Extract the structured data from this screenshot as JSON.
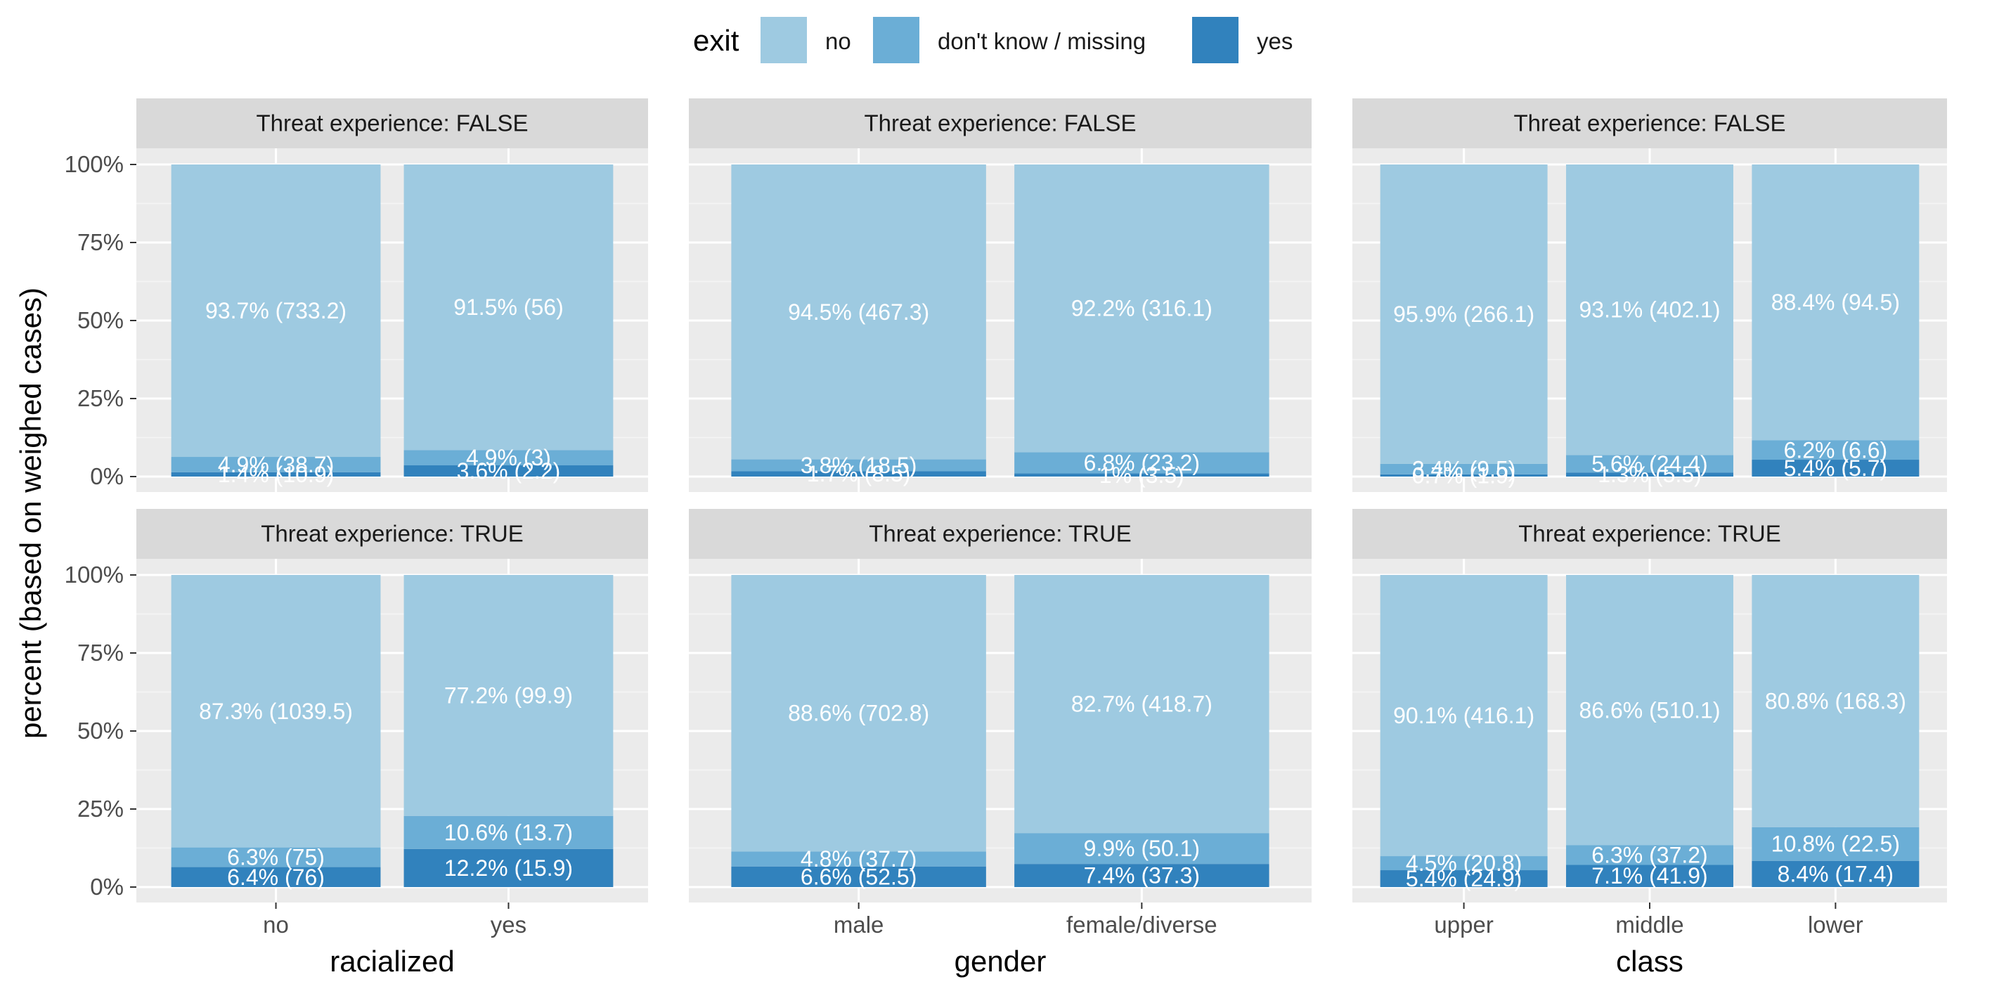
{
  "chart_data": {
    "type": "bar",
    "stacked": true,
    "ylabel": "percent (based on weighed cases)",
    "ylim": [
      0,
      1
    ],
    "y_ticks": [
      "0%",
      "25%",
      "50%",
      "75%",
      "100%"
    ],
    "grid": true,
    "legend": {
      "title": "exit",
      "position": "top",
      "items": [
        {
          "label": "no",
          "color": "#9ECAE1"
        },
        {
          "label": "don't know / missing",
          "color": "#6BAED6"
        },
        {
          "label": "yes",
          "color": "#3182BD"
        }
      ]
    },
    "strips": [
      "Threat experience: FALSE",
      "Threat experience: TRUE"
    ],
    "panels": [
      {
        "xlabel": "racialized",
        "categories": [
          "no",
          "yes"
        ],
        "rows": [
          {
            "strip": "Threat experience: FALSE",
            "bars": [
              {
                "category": "no",
                "yes": 0.014,
                "dk": 0.049,
                "no": 0.937,
                "labels": {
                  "yes": "1.4% (10.9)",
                  "dk": "4.9% (38.7)",
                  "no": "93.7% (733.2)"
                }
              },
              {
                "category": "yes",
                "yes": 0.036,
                "dk": 0.049,
                "no": 0.915,
                "labels": {
                  "yes": "3.6% (2.2)",
                  "dk": "4.9% (3)",
                  "no": "91.5% (56)"
                }
              }
            ]
          },
          {
            "strip": "Threat experience: TRUE",
            "bars": [
              {
                "category": "no",
                "yes": 0.064,
                "dk": 0.063,
                "no": 0.873,
                "labels": {
                  "yes": "6.4% (76)",
                  "dk": "6.3% (75)",
                  "no": "87.3% (1039.5)"
                }
              },
              {
                "category": "yes",
                "yes": 0.122,
                "dk": 0.106,
                "no": 0.772,
                "labels": {
                  "yes": "12.2% (15.9)",
                  "dk": "10.6% (13.7)",
                  "no": "77.2% (99.9)"
                }
              }
            ]
          }
        ]
      },
      {
        "xlabel": "gender",
        "categories": [
          "male",
          "female/diverse"
        ],
        "rows": [
          {
            "strip": "Threat experience: FALSE",
            "bars": [
              {
                "category": "male",
                "yes": 0.017,
                "dk": 0.038,
                "no": 0.945,
                "labels": {
                  "yes": "1.7% (8.5)",
                  "dk": "3.8% (18.5)",
                  "no": "94.5% (467.3)"
                }
              },
              {
                "category": "female/diverse",
                "yes": 0.01,
                "dk": 0.068,
                "no": 0.922,
                "labels": {
                  "yes": "1% (3.5)",
                  "dk": "6.8% (23.2)",
                  "no": "92.2% (316.1)"
                }
              }
            ]
          },
          {
            "strip": "Threat experience: TRUE",
            "bars": [
              {
                "category": "male",
                "yes": 0.066,
                "dk": 0.048,
                "no": 0.886,
                "labels": {
                  "yes": "6.6% (52.5)",
                  "dk": "4.8% (37.7)",
                  "no": "88.6% (702.8)"
                }
              },
              {
                "category": "female/diverse",
                "yes": 0.074,
                "dk": 0.099,
                "no": 0.827,
                "labels": {
                  "yes": "7.4% (37.3)",
                  "dk": "9.9% (50.1)",
                  "no": "82.7% (418.7)"
                }
              }
            ]
          }
        ]
      },
      {
        "xlabel": "class",
        "categories": [
          "upper",
          "middle",
          "lower"
        ],
        "rows": [
          {
            "strip": "Threat experience: FALSE",
            "bars": [
              {
                "category": "upper",
                "yes": 0.007,
                "dk": 0.034,
                "no": 0.959,
                "labels": {
                  "yes": "0.7% (1.9)",
                  "dk": "3.4% (9.5)",
                  "no": "95.9% (266.1)"
                }
              },
              {
                "category": "middle",
                "yes": 0.013,
                "dk": 0.056,
                "no": 0.931,
                "labels": {
                  "yes": "1.3% (5.5)",
                  "dk": "5.6% (24.4)",
                  "no": "93.1% (402.1)"
                }
              },
              {
                "category": "lower",
                "yes": 0.054,
                "dk": 0.062,
                "no": 0.884,
                "labels": {
                  "yes": "5.4% (5.7)",
                  "dk": "6.2% (6.6)",
                  "no": "88.4% (94.5)"
                }
              }
            ]
          },
          {
            "strip": "Threat experience: TRUE",
            "bars": [
              {
                "category": "upper",
                "yes": 0.054,
                "dk": 0.045,
                "no": 0.901,
                "labels": {
                  "yes": "5.4% (24.9)",
                  "dk": "4.5% (20.8)",
                  "no": "90.1% (416.1)"
                }
              },
              {
                "category": "middle",
                "yes": 0.071,
                "dk": 0.063,
                "no": 0.866,
                "labels": {
                  "yes": "7.1% (41.9)",
                  "dk": "6.3% (37.2)",
                  "no": "86.6% (510.1)"
                }
              },
              {
                "category": "lower",
                "yes": 0.084,
                "dk": 0.108,
                "no": 0.808,
                "labels": {
                  "yes": "8.4% (17.4)",
                  "dk": "10.8% (22.5)",
                  "no": "80.8% (168.3)"
                }
              }
            ]
          }
        ]
      }
    ]
  }
}
